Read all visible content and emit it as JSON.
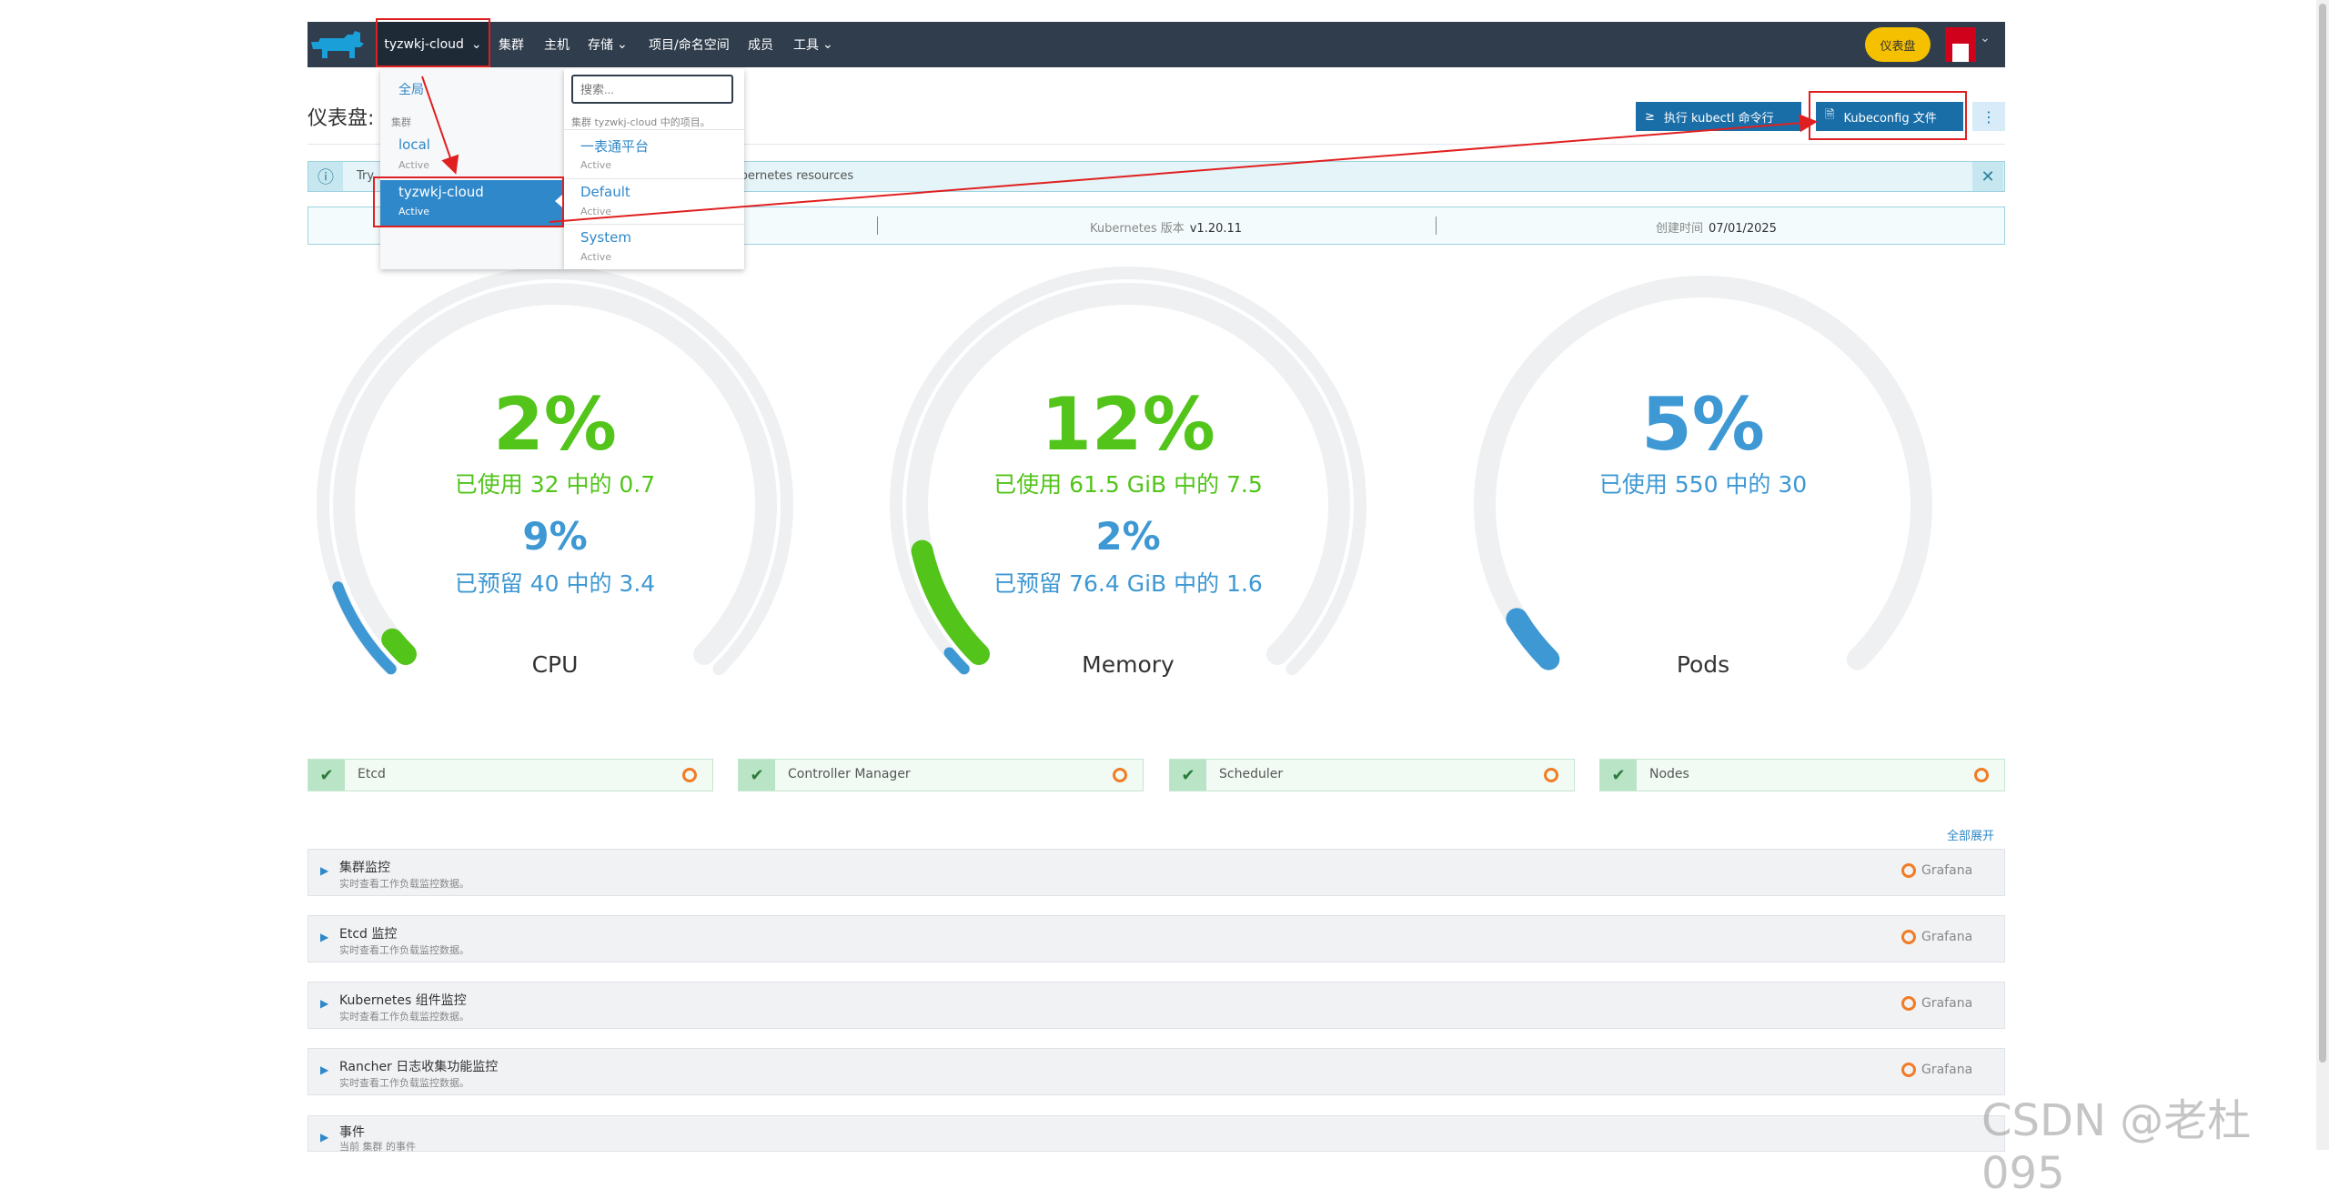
{
  "nav": {
    "cluster_selector": "tyzwkj-cloud",
    "items": [
      "集群",
      "主机",
      "存储",
      "项目/命名空间",
      "成员",
      "工具"
    ],
    "dashboard_badge": "仪表盘"
  },
  "page": {
    "title": "仪表盘: t",
    "kubectl_button": "执行 kubectl 命令行",
    "kubeconfig_button": "Kubeconfig 文件",
    "more_button": "⋮"
  },
  "banner": {
    "text_left": "Try",
    "text_right": "r Kubernetes resources",
    "close": "✕"
  },
  "info": {
    "k8s_label": "Kubernetes 版本",
    "k8s_value": "v1.20.11",
    "created_label": "创建时间",
    "created_value": "07/01/2025"
  },
  "dropdown": {
    "global": "全局",
    "cluster_section": "集群",
    "clusters": [
      {
        "name": "local",
        "status": "Active"
      },
      {
        "name": "tyzwkj-cloud",
        "status": "Active"
      }
    ],
    "search_placeholder": "搜索...",
    "projects_header": "集群 tyzwkj-cloud 中的项目。",
    "projects": [
      {
        "name": "一表通平台",
        "status": "Active"
      },
      {
        "name": "Default",
        "status": "Active"
      },
      {
        "name": "System",
        "status": "Active"
      }
    ]
  },
  "gauges": [
    {
      "name": "CPU",
      "used_pct": "2%",
      "used_text": "已使用 32 中的 0.7",
      "reserved_pct": "9%",
      "reserved_text": "已预留 40 中的 3.4",
      "used_fraction": 0.02,
      "reserved_fraction": 0.09
    },
    {
      "name": "Memory",
      "used_pct": "12%",
      "used_text": "已使用 61.5 GiB 中的 7.5",
      "reserved_pct": "2%",
      "reserved_text": "已预留 76.4 GiB 中的 1.6",
      "used_fraction": 0.12,
      "reserved_fraction": 0.02
    },
    {
      "name": "Pods",
      "used_pct": "5%",
      "used_text": "已使用 550 中的 30",
      "used_fraction": 0.05
    }
  ],
  "colors": {
    "green": "#52c41a",
    "blue": "#3d98d3",
    "track": "#eef0f2"
  },
  "components": [
    "Etcd",
    "Controller Manager",
    "Scheduler",
    "Nodes"
  ],
  "expand_all": "全部展开",
  "sections": [
    {
      "title": "集群监控",
      "subtitle": "实时查看工作负载监控数据。",
      "link": "Grafana"
    },
    {
      "title": "Etcd 监控",
      "subtitle": "实时查看工作负载监控数据。",
      "link": "Grafana"
    },
    {
      "title": "Kubernetes 组件监控",
      "subtitle": "实时查看工作负载监控数据。",
      "link": "Grafana"
    },
    {
      "title": "Rancher 日志收集功能监控",
      "subtitle": "实时查看工作负载监控数据。",
      "link": "Grafana"
    },
    {
      "title": "事件",
      "subtitle": "当前 集群 的事件"
    }
  ],
  "watermark": "CSDN @老杜095"
}
